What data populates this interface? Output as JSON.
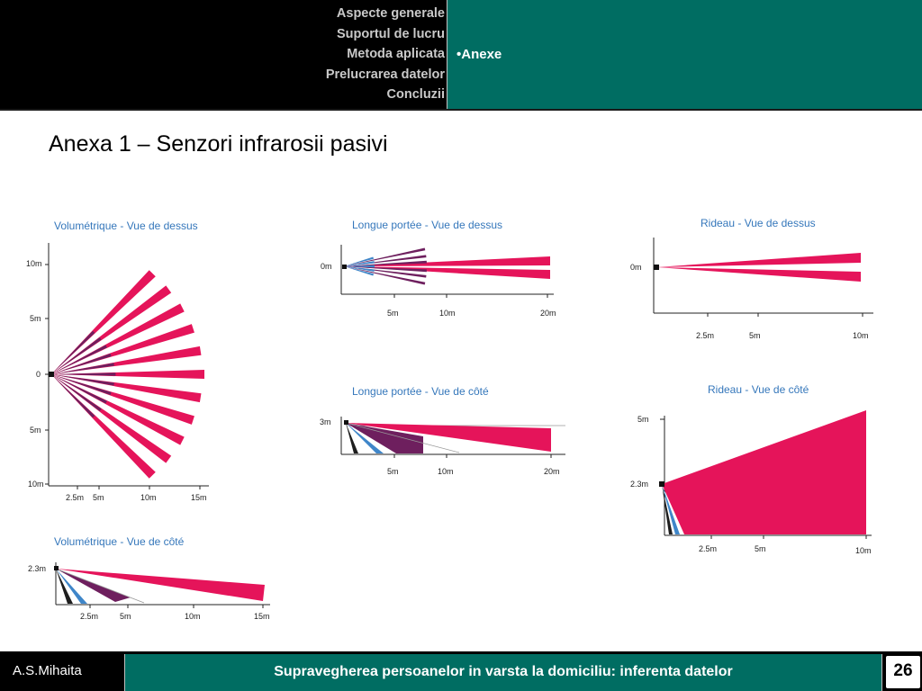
{
  "nav": {
    "items": [
      "Aspecte generale",
      "Suportul de lucru",
      "Metoda aplicata",
      "Prelucrarea datelor",
      "Concluzii"
    ],
    "current": "•Anexe"
  },
  "slide_title": "Anexa 1 – Senzori infrarosii pasivi",
  "colors": {
    "zone_main": "#e5145a",
    "zone_mid": "#6e1f5e",
    "zone_near": "#3f86c9",
    "zone_floor": "#1e1e1e",
    "axis": "#222222",
    "panel_title": "#3577bb",
    "header_band": "#006d62"
  },
  "panels": {
    "vol_top": {
      "title": "Volumétrique - Vue de dessus",
      "y_ticks": [
        "10m",
        "5m",
        "0",
        "5m",
        "10m"
      ],
      "x_ticks": [
        "2.5m",
        "5m",
        "10m",
        "15m"
      ]
    },
    "vol_side": {
      "title": "Volumétrique - Vue de côté",
      "y_ticks": [
        "2.3m"
      ],
      "x_ticks": [
        "2.5m",
        "5m",
        "10m",
        "15m"
      ]
    },
    "long_top": {
      "title": "Longue portée - Vue de dessus",
      "y_ticks": [
        "0m"
      ],
      "x_ticks": [
        "5m",
        "10m",
        "20m"
      ]
    },
    "long_side": {
      "title": "Longue portée - Vue de côté",
      "y_ticks": [
        "3m"
      ],
      "x_ticks": [
        "5m",
        "10m",
        "20m"
      ]
    },
    "curtain_top": {
      "title": "Rideau - Vue de dessus",
      "y_ticks": [
        "0m"
      ],
      "x_ticks": [
        "2.5m",
        "5m",
        "10m"
      ]
    },
    "curtain_side": {
      "title": "Rideau - Vue de côté",
      "y_ticks": [
        "5m",
        "2.3m"
      ],
      "x_ticks": [
        "2.5m",
        "5m",
        "10m"
      ]
    }
  },
  "footer": {
    "author": "A.S.Mihaita",
    "title": "Supravegherea persoanelor in varsta la domiciliu: inferenta datelor",
    "page": "26"
  }
}
